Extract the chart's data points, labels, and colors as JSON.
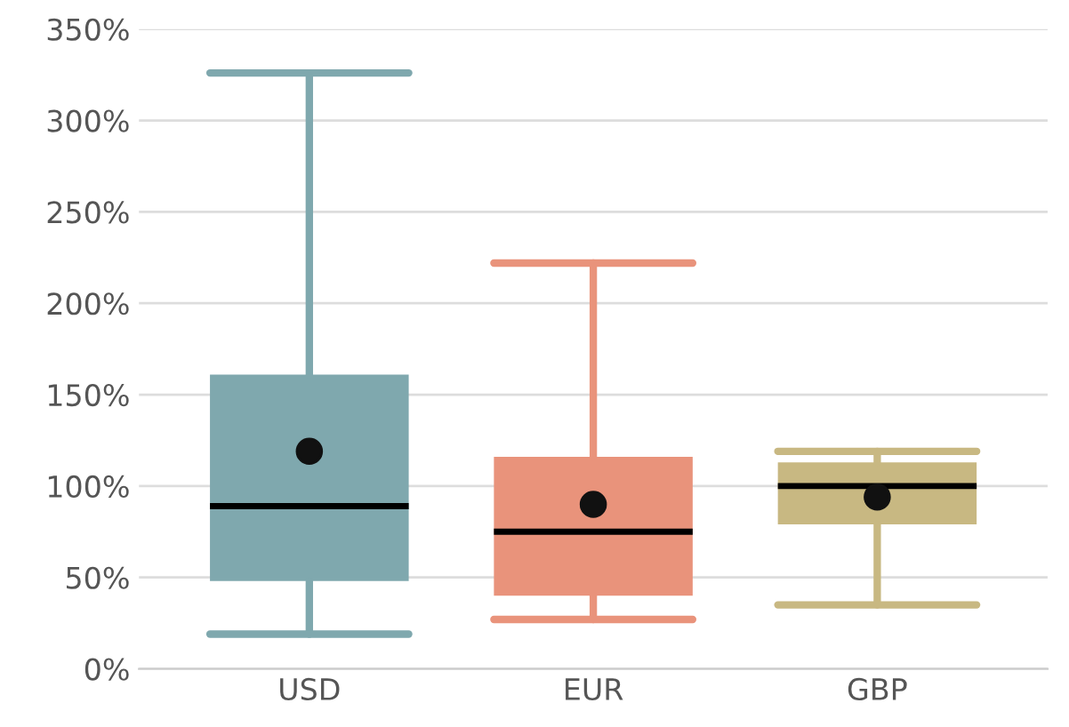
{
  "chart_data": {
    "type": "box",
    "categories": [
      "USD",
      "EUR",
      "GBP"
    ],
    "boxes": [
      {
        "low": 19,
        "q1": 48,
        "median": 89,
        "q3": 161,
        "high": 326,
        "mean": 119
      },
      {
        "low": 27,
        "q1": 40,
        "median": 75,
        "q3": 116,
        "high": 222,
        "mean": 90
      },
      {
        "low": 35,
        "q1": 79,
        "median": 100,
        "q3": 113,
        "high": 119,
        "mean": 94
      }
    ],
    "colors": [
      "#7fa8ae",
      "#e9937b",
      "#c8b882"
    ],
    "ylim": [
      0,
      350
    ],
    "yticks": [
      {
        "value": 0,
        "label": "0%"
      },
      {
        "value": 50,
        "label": "50%"
      },
      {
        "value": 100,
        "label": "100%"
      },
      {
        "value": 150,
        "label": "150%"
      },
      {
        "value": 200,
        "label": "200%"
      },
      {
        "value": 250,
        "label": "250%"
      },
      {
        "value": 300,
        "label": "300%"
      },
      {
        "value": 350,
        "label": "350%"
      }
    ],
    "grid": "y"
  }
}
